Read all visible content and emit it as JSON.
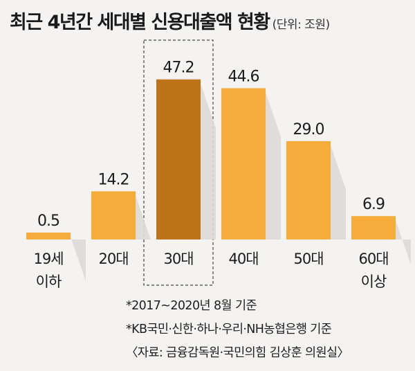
{
  "title": "최근 4년간 세대별 신용대출액 현황",
  "unit": "(단위: 조원)",
  "chart_data": {
    "type": "bar",
    "title": "최근 4년간 세대별 신용대출액 현황",
    "unit": "(단위: 조원)",
    "categories": [
      [
        "19세",
        "이하"
      ],
      [
        "20대"
      ],
      [
        "30대"
      ],
      [
        "40대"
      ],
      [
        "50대"
      ],
      [
        "60대",
        "이상"
      ]
    ],
    "values": [
      0.5,
      14.2,
      47.2,
      44.6,
      29.0,
      6.9
    ],
    "value_labels": [
      "0.5",
      "14.2",
      "47.2",
      "44.6",
      "29.0",
      "6.9"
    ],
    "highlight_index": 2,
    "ylim": [
      0,
      50
    ],
    "grid": false,
    "colors": {
      "bar": "#f5ac3b",
      "highlight": "#bd7318",
      "shadow": "#dcdad6",
      "highlight_box": "#444444"
    }
  },
  "notes": [
    "*2017~2020년 8월 기준",
    "*KB국민·신한·하나·우리·NH농협은행 기준",
    "〈자료: 금융감독원·국민의힘 김상훈 의원실〉"
  ]
}
